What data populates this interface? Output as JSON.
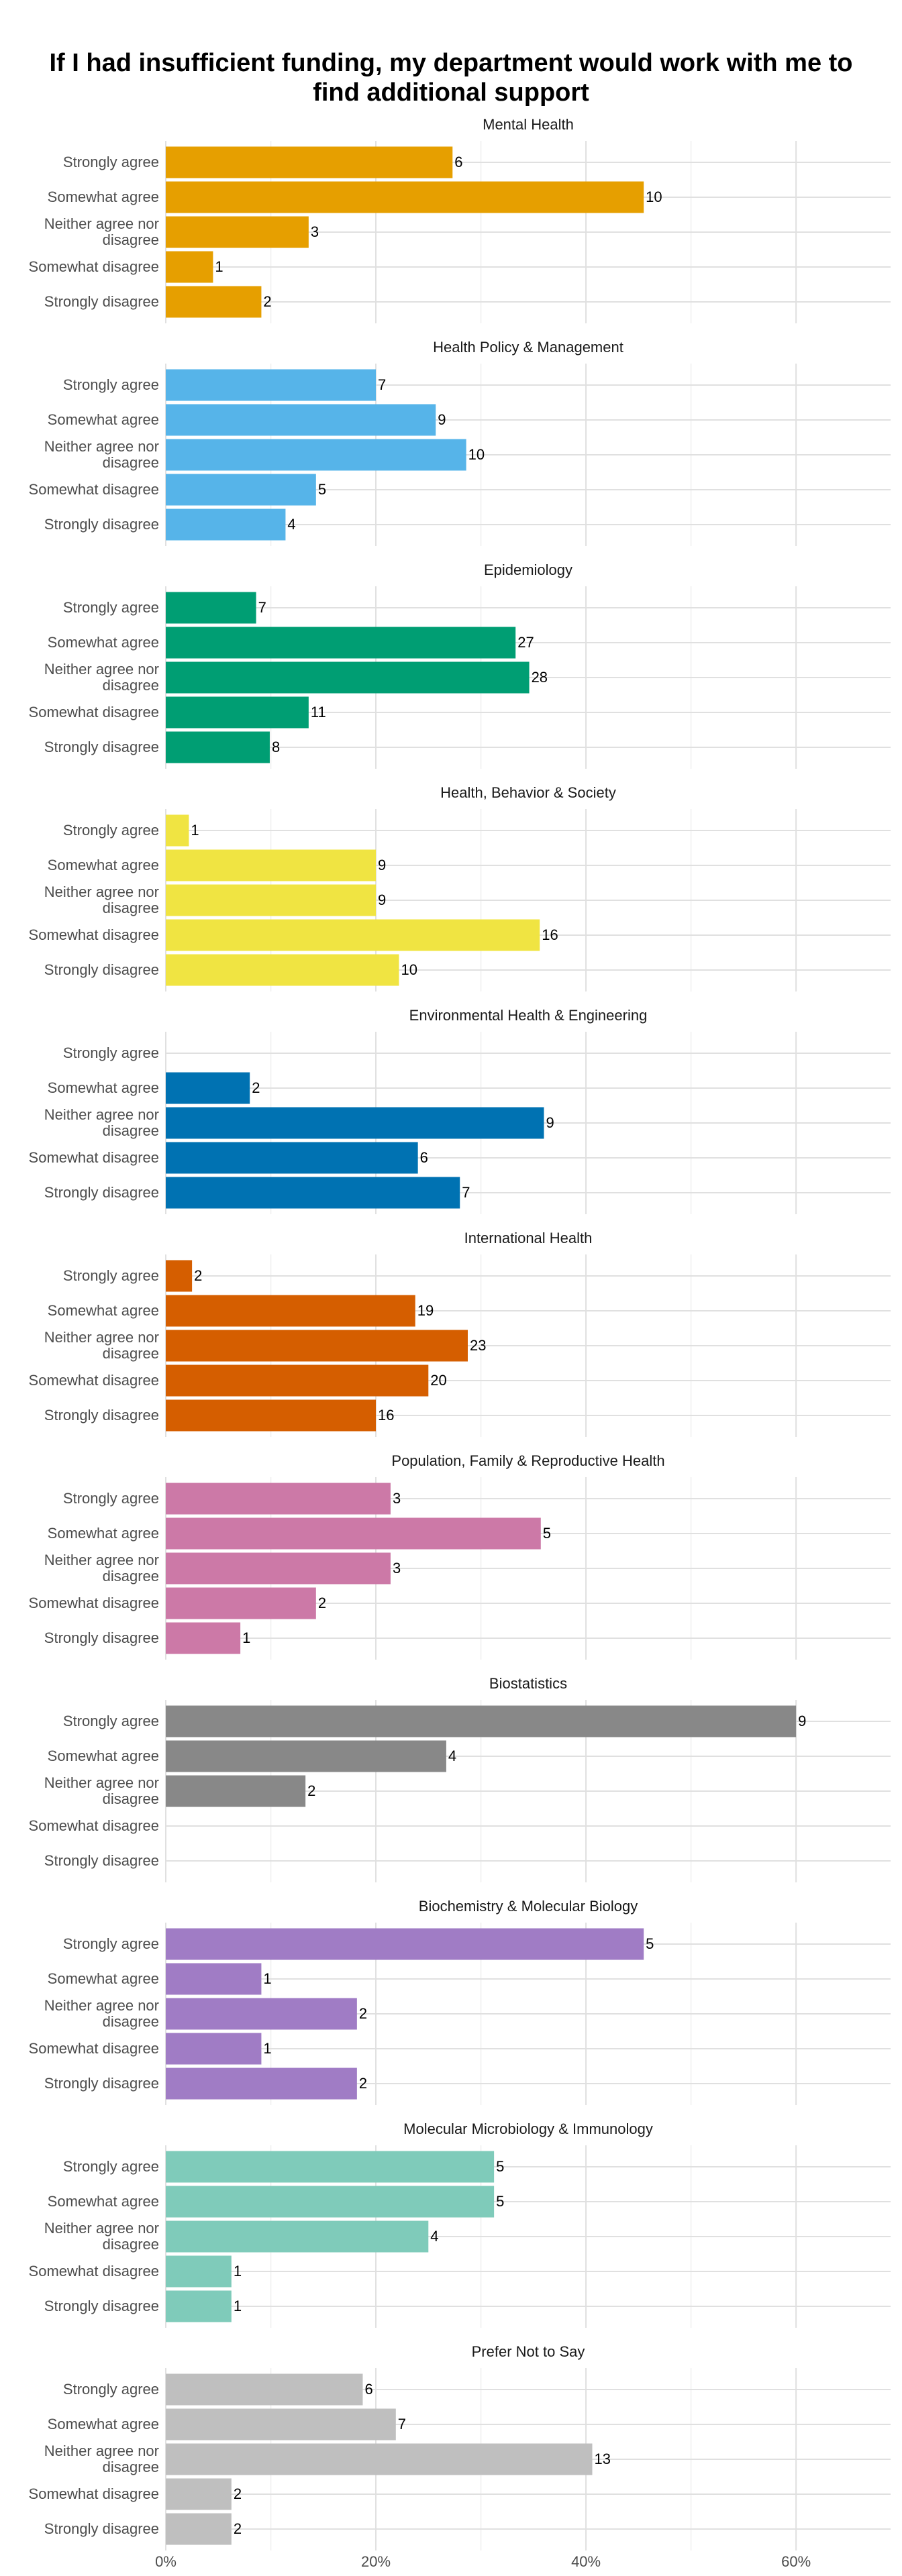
{
  "title": "If I had insufficient funding, my department would work with me to find additional support",
  "axis": {
    "xlim": [
      0,
      69
    ],
    "xticks": [
      {
        "value": 0,
        "label": "0%"
      },
      {
        "value": 20,
        "label": "20%"
      },
      {
        "value": 40,
        "label": "40%"
      },
      {
        "value": 60,
        "label": "60%"
      }
    ],
    "xminor": [
      10,
      30,
      50
    ],
    "grid": true
  },
  "chart_data": [
    {
      "type": "bar",
      "title": "Mental Health",
      "color": "#E69F00",
      "categories": [
        "Strongly agree",
        "Somewhat agree",
        "Neither agree nor disagree",
        "Somewhat disagree",
        "Strongly disagree"
      ],
      "values": [
        27.3,
        45.5,
        13.6,
        4.5,
        9.1
      ],
      "counts": [
        6,
        10,
        3,
        1,
        2
      ]
    },
    {
      "type": "bar",
      "title": "Health Policy & Management",
      "color": "#56B4E9",
      "categories": [
        "Strongly agree",
        "Somewhat agree",
        "Neither agree nor disagree",
        "Somewhat disagree",
        "Strongly disagree"
      ],
      "values": [
        20,
        25.7,
        28.6,
        14.3,
        11.4
      ],
      "counts": [
        7,
        9,
        10,
        5,
        4
      ]
    },
    {
      "type": "bar",
      "title": "Epidemiology",
      "color": "#009E73",
      "categories": [
        "Strongly agree",
        "Somewhat agree",
        "Neither agree nor disagree",
        "Somewhat disagree",
        "Strongly disagree"
      ],
      "values": [
        8.6,
        33.3,
        34.6,
        13.6,
        9.9
      ],
      "counts": [
        7,
        27,
        28,
        11,
        8
      ]
    },
    {
      "type": "bar",
      "title": "Health, Behavior & Society",
      "color": "#F0E442",
      "categories": [
        "Strongly agree",
        "Somewhat agree",
        "Neither agree nor disagree",
        "Somewhat disagree",
        "Strongly disagree"
      ],
      "values": [
        2.2,
        20,
        20,
        35.6,
        22.2
      ],
      "counts": [
        1,
        9,
        9,
        16,
        10
      ]
    },
    {
      "type": "bar",
      "title": "Environmental Health & Engineering",
      "color": "#0072B2",
      "categories": [
        "Strongly agree",
        "Somewhat agree",
        "Neither agree nor disagree",
        "Somewhat disagree",
        "Strongly disagree"
      ],
      "values": [
        0,
        8,
        36,
        24,
        28
      ],
      "counts": [
        null,
        2,
        9,
        6,
        7
      ]
    },
    {
      "type": "bar",
      "title": "International Health",
      "color": "#D55E00",
      "categories": [
        "Strongly agree",
        "Somewhat agree",
        "Neither agree nor disagree",
        "Somewhat disagree",
        "Strongly disagree"
      ],
      "values": [
        2.5,
        23.75,
        28.75,
        25,
        20
      ],
      "counts": [
        2,
        19,
        23,
        20,
        16
      ]
    },
    {
      "type": "bar",
      "title": "Population, Family & Reproductive Health",
      "color": "#CC79A7",
      "categories": [
        "Strongly agree",
        "Somewhat agree",
        "Neither agree nor disagree",
        "Somewhat disagree",
        "Strongly disagree"
      ],
      "values": [
        21.4,
        35.7,
        21.4,
        14.3,
        7.1
      ],
      "counts": [
        3,
        5,
        3,
        2,
        1
      ]
    },
    {
      "type": "bar",
      "title": "Biostatistics",
      "color": "#888888",
      "categories": [
        "Strongly agree",
        "Somewhat agree",
        "Neither agree nor disagree",
        "Somewhat disagree",
        "Strongly disagree"
      ],
      "values": [
        60,
        26.7,
        13.3,
        0,
        0
      ],
      "counts": [
        9,
        4,
        2,
        null,
        null
      ]
    },
    {
      "type": "bar",
      "title": "Biochemistry & Molecular Biology",
      "color": "#A07CC5",
      "categories": [
        "Strongly agree",
        "Somewhat agree",
        "Neither agree nor disagree",
        "Somewhat disagree",
        "Strongly disagree"
      ],
      "values": [
        45.5,
        9.1,
        18.2,
        9.1,
        18.2
      ],
      "counts": [
        5,
        1,
        2,
        1,
        2
      ]
    },
    {
      "type": "bar",
      "title": "Molecular Microbiology & Immunology",
      "color": "#7FCBBA",
      "categories": [
        "Strongly agree",
        "Somewhat agree",
        "Neither agree nor disagree",
        "Somewhat disagree",
        "Strongly disagree"
      ],
      "values": [
        31.25,
        31.25,
        25,
        6.25,
        6.25
      ],
      "counts": [
        5,
        5,
        4,
        1,
        1
      ]
    },
    {
      "type": "bar",
      "title": "Prefer Not to Say",
      "color": "#BFBFBF",
      "categories": [
        "Strongly agree",
        "Somewhat agree",
        "Neither agree nor disagree",
        "Somewhat disagree",
        "Strongly disagree"
      ],
      "values": [
        18.75,
        21.9,
        40.6,
        6.25,
        6.25
      ],
      "counts": [
        6,
        7,
        13,
        2,
        2
      ]
    }
  ]
}
